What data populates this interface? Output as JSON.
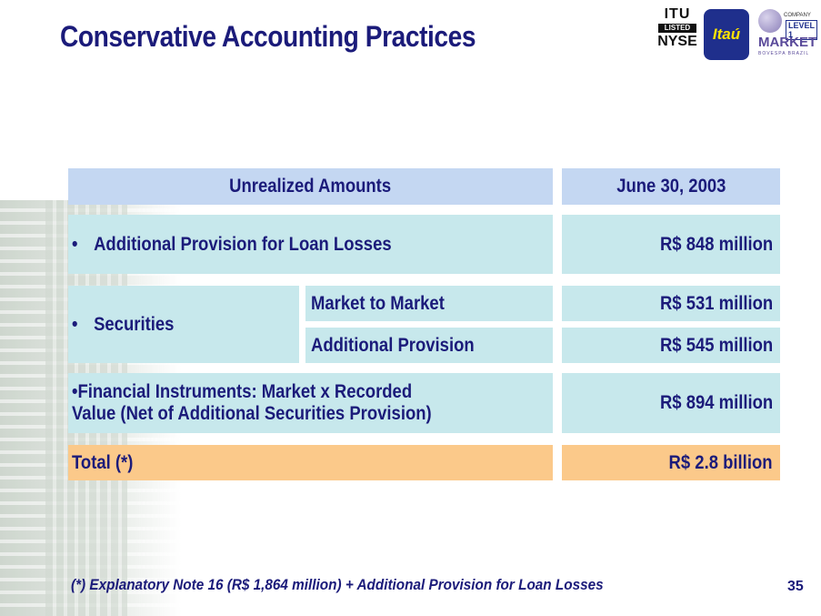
{
  "slide": {
    "title": "Conservative Accounting Practices",
    "page_number": "35"
  },
  "logos": {
    "nyse_line1": "ITU",
    "nyse_line2": "LISTED",
    "nyse_line3": "NYSE",
    "itau": "Itaú",
    "market_company": "COMPANY",
    "market_level": "LEVEL 1",
    "market_name": "MARKET",
    "market_sub": "BOVESPA BRAZIL"
  },
  "table": {
    "header_left": "Unrealized Amounts",
    "header_right": "June 30, 2003",
    "bullet": "•",
    "rows": [
      {
        "label": "Additional Provision for Loan Losses",
        "value": "R$ 848 million"
      },
      {
        "label": "Securities",
        "sub": [
          {
            "label": "Market to Market",
            "value": "R$ 531 million"
          },
          {
            "label": "Additional Provision",
            "value": "R$ 545 million"
          }
        ]
      },
      {
        "label_line1": "•Financial Instruments: Market x Recorded",
        "label_line2": "Value (Net of Additional Securities Provision)",
        "value": "R$ 894 million"
      }
    ],
    "total_label": "Total (*)",
    "total_value": "R$ 2.8 billion"
  },
  "footnote": "(*) Explanatory Note 16 (R$ 1,864 million) + Additional Provision for Loan Losses",
  "colors": {
    "title": "#1b1b7a",
    "header_fill": "#c4d7f2",
    "row_fill": "#c7e8ec",
    "total_fill": "#fbc98a"
  }
}
